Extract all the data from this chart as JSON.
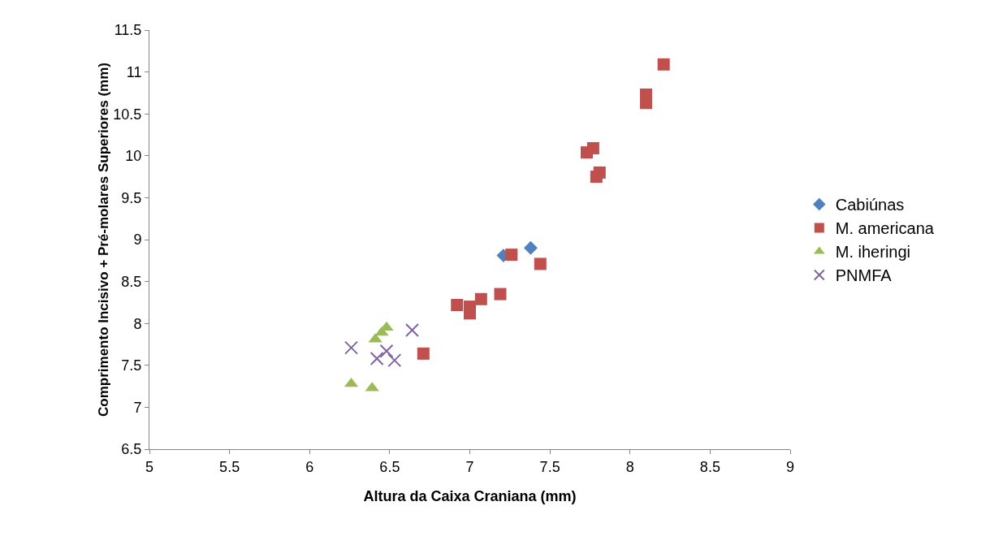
{
  "chart_data": {
    "type": "scatter",
    "xlabel": "Altura da Caixa Craniana (mm)",
    "ylabel": "Comprimento Incisivo + Pré-molares Superiores (mm)",
    "xlim": [
      5,
      9
    ],
    "xticks": [
      5,
      5.5,
      6,
      6.5,
      7,
      7.5,
      8,
      8.5,
      9
    ],
    "ylim": [
      6.5,
      11.5
    ],
    "yticks": [
      6.5,
      7,
      7.5,
      8,
      8.5,
      9,
      9.5,
      10,
      10.5,
      11,
      11.5
    ],
    "grid": false,
    "legend": "right",
    "series": [
      {
        "name": "Cabiúnas",
        "color": "#4f81bd",
        "marker": "diamond",
        "x": [
          7.21,
          7.38
        ],
        "values": [
          8.81,
          8.9
        ]
      },
      {
        "name": "M. americana",
        "color": "#c0504d",
        "marker": "square",
        "x": [
          8.21,
          8.1,
          8.1,
          7.73,
          7.77,
          7.81,
          7.79,
          7.26,
          7.44,
          6.92,
          7.0,
          7.0,
          7.07,
          7.19,
          6.71
        ],
        "values": [
          11.09,
          10.73,
          10.63,
          10.04,
          10.09,
          9.8,
          9.75,
          8.82,
          8.71,
          8.22,
          8.2,
          8.12,
          8.29,
          8.35,
          7.64
        ]
      },
      {
        "name": "M. iheringi",
        "color": "#9bbb59",
        "marker": "triangle",
        "x": [
          6.26,
          6.39,
          6.41,
          6.45,
          6.48
        ],
        "values": [
          7.28,
          7.23,
          7.81,
          7.89,
          7.95
        ]
      },
      {
        "name": "PNMFA",
        "color": "#8064a2",
        "marker": "cross",
        "x": [
          6.26,
          6.42,
          6.48,
          6.53,
          6.64
        ],
        "values": [
          7.71,
          7.58,
          7.67,
          7.56,
          7.92
        ]
      }
    ]
  }
}
